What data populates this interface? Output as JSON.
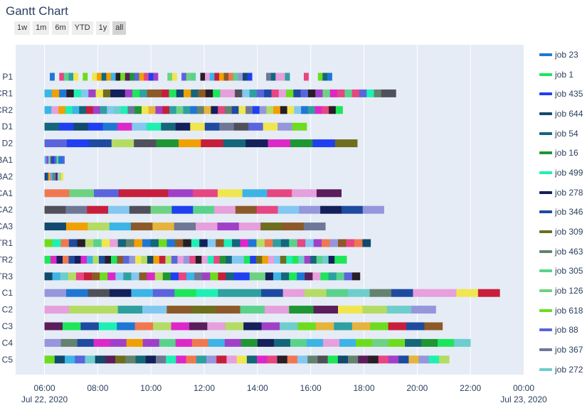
{
  "title": "Gantt Chart",
  "range_buttons": [
    {
      "label": "1w",
      "active": false
    },
    {
      "label": "1m",
      "active": false
    },
    {
      "label": "6m",
      "active": false
    },
    {
      "label": "YTD",
      "active": false
    },
    {
      "label": "1y",
      "active": false
    },
    {
      "label": "all",
      "active": true
    }
  ],
  "chart_data": {
    "type": "gantt",
    "title": "Gantt Chart",
    "x_range": [
      "2020-07-22 04:55",
      "2020-07-23 00:00"
    ],
    "x_ticks": [
      {
        "time": "06:00",
        "date": "Jul 22, 2020",
        "hour": 6
      },
      {
        "time": "08:00",
        "date": "",
        "hour": 8
      },
      {
        "time": "10:00",
        "date": "",
        "hour": 10
      },
      {
        "time": "12:00",
        "date": "",
        "hour": 12
      },
      {
        "time": "14:00",
        "date": "",
        "hour": 14
      },
      {
        "time": "16:00",
        "date": "",
        "hour": 16
      },
      {
        "time": "18:00",
        "date": "",
        "hour": 18
      },
      {
        "time": "20:00",
        "date": "",
        "hour": 20
      },
      {
        "time": "22:00",
        "date": "",
        "hour": 22
      },
      {
        "time": "00:00",
        "date": "Jul 23, 2020",
        "hour": 24
      }
    ],
    "grid": true,
    "legend_position": "right",
    "legend": [
      {
        "name": "job 23",
        "color": "#1f77d4"
      },
      {
        "name": "job 1",
        "color": "#1ee65a"
      },
      {
        "name": "job 435",
        "color": "#1f3ff0"
      },
      {
        "name": "job 644",
        "color": "#114a6e"
      },
      {
        "name": "job 54",
        "color": "#14667a"
      },
      {
        "name": "job 16",
        "color": "#1e9632"
      },
      {
        "name": "job 499",
        "color": "#1ef0b4"
      },
      {
        "name": "job 278",
        "color": "#14205a"
      },
      {
        "name": "job 346",
        "color": "#1e4aa0"
      },
      {
        "name": "job 309",
        "color": "#6e6e1e"
      },
      {
        "name": "job 463",
        "color": "#64826e"
      },
      {
        "name": "job 305",
        "color": "#5ad28c"
      },
      {
        "name": "job 126",
        "color": "#6ed282"
      },
      {
        "name": "job 618",
        "color": "#6edc1e"
      },
      {
        "name": "job 88",
        "color": "#5a64dc"
      },
      {
        "name": "job 367",
        "color": "#6e7896"
      },
      {
        "name": "job 272",
        "color": "#6ecdcd"
      }
    ],
    "rows": [
      {
        "label": "P1",
        "start": 6.2,
        "end": 16.8,
        "n": 60
      },
      {
        "label": "CR1",
        "start": 6.0,
        "end": 19.2,
        "n": 48
      },
      {
        "label": "CR2",
        "start": 6.0,
        "end": 17.2,
        "n": 43
      },
      {
        "label": "D1",
        "start": 6.0,
        "end": 15.85,
        "n": 18
      },
      {
        "label": "D2",
        "start": 6.0,
        "end": 17.75,
        "n": 14
      },
      {
        "label": "BA1",
        "start": 6.0,
        "end": 6.75,
        "n": 10
      },
      {
        "label": "BA2",
        "start": 6.0,
        "end": 6.7,
        "n": 10
      },
      {
        "label": "CA1",
        "start": 6.0,
        "end": 17.15,
        "n": 12
      },
      {
        "label": "CA2",
        "start": 6.0,
        "end": 18.75,
        "n": 16
      },
      {
        "label": "CA3",
        "start": 6.0,
        "end": 16.55,
        "n": 13
      },
      {
        "label": "TR1",
        "start": 6.0,
        "end": 18.25,
        "n": 40
      },
      {
        "label": "TR2",
        "start": 6.0,
        "end": 17.35,
        "n": 50
      },
      {
        "label": "TR3",
        "start": 6.0,
        "end": 17.85,
        "n": 40
      },
      {
        "label": "C1",
        "start": 6.0,
        "end": 23.1,
        "n": 21
      },
      {
        "label": "C2",
        "start": 6.0,
        "end": 20.7,
        "n": 16
      },
      {
        "label": "C3",
        "start": 6.0,
        "end": 20.95,
        "n": 22
      },
      {
        "label": "C4",
        "start": 6.0,
        "end": 22.0,
        "n": 26
      },
      {
        "label": "C5",
        "start": 6.0,
        "end": 21.2,
        "n": 40
      }
    ]
  }
}
